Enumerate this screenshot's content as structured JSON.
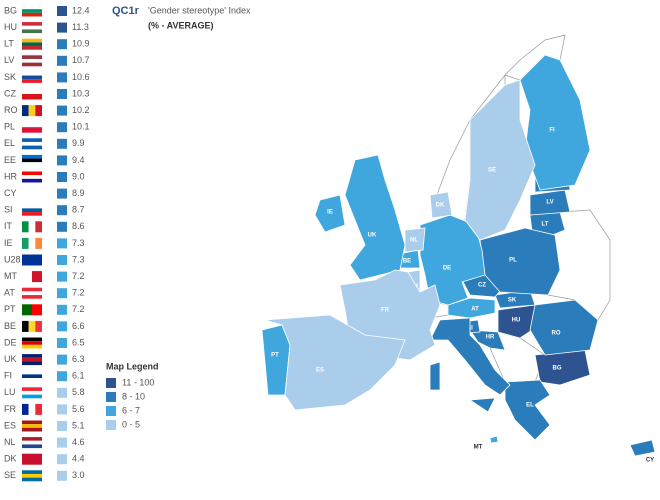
{
  "header": {
    "code": "QC1r",
    "title": "'Gender stereotype' Index",
    "subtitle": "(% - AVERAGE)"
  },
  "rows": [
    {
      "code": "BG",
      "value": 12.4,
      "color": "#2d5391"
    },
    {
      "code": "HU",
      "value": 11.3,
      "color": "#2d5391"
    },
    {
      "code": "LT",
      "value": 10.9,
      "color": "#2b7cba"
    },
    {
      "code": "LV",
      "value": 10.7,
      "color": "#2b7cba"
    },
    {
      "code": "SK",
      "value": 10.6,
      "color": "#2b7cba"
    },
    {
      "code": "CZ",
      "value": 10.3,
      "color": "#2b7cba"
    },
    {
      "code": "RO",
      "value": 10.2,
      "color": "#2b7cba"
    },
    {
      "code": "PL",
      "value": 10.1,
      "color": "#2b7cba"
    },
    {
      "code": "EL",
      "value": 9.9,
      "color": "#2b7cba"
    },
    {
      "code": "EE",
      "value": 9.4,
      "color": "#2b7cba"
    },
    {
      "code": "HR",
      "value": 9.0,
      "value_label": "9.0",
      "color": "#2b7cba"
    },
    {
      "code": "CY",
      "value": 8.9,
      "color": "#2b7cba"
    },
    {
      "code": "SI",
      "value": 8.7,
      "color": "#2b7cba"
    },
    {
      "code": "IT",
      "value": 8.6,
      "color": "#2b7cba"
    },
    {
      "code": "IE",
      "value": 7.3,
      "color": "#3fa6de"
    },
    {
      "code": "U28",
      "value": 7.3,
      "color": "#3fa6de"
    },
    {
      "code": "MT",
      "value": 7.2,
      "color": "#3fa6de"
    },
    {
      "code": "AT",
      "value": 7.2,
      "color": "#3fa6de"
    },
    {
      "code": "PT",
      "value": 7.2,
      "color": "#3fa6de"
    },
    {
      "code": "BE",
      "value": 6.6,
      "color": "#3fa6de"
    },
    {
      "code": "DE",
      "value": 6.5,
      "color": "#3fa6de"
    },
    {
      "code": "UK",
      "value": 6.3,
      "color": "#3fa6de"
    },
    {
      "code": "FI",
      "value": 6.1,
      "color": "#3fa6de"
    },
    {
      "code": "LU",
      "value": 5.8,
      "color": "#a9cdea"
    },
    {
      "code": "FR",
      "value": 5.6,
      "color": "#a9cdea"
    },
    {
      "code": "ES",
      "value": 5.1,
      "color": "#a9cdea"
    },
    {
      "code": "NL",
      "value": 4.6,
      "color": "#a9cdea"
    },
    {
      "code": "DK",
      "value": 4.4,
      "color": "#a9cdea"
    },
    {
      "code": "SE",
      "value": 3.0,
      "value_label": "3.0",
      "color": "#a9cdea"
    }
  ],
  "legend": {
    "title": "Map Legend",
    "items": [
      {
        "label": "11 - 100",
        "color": "#2d5391"
      },
      {
        "label": "8 - 10",
        "color": "#2b7cba"
      },
      {
        "label": "6 - 7",
        "color": "#3fa6de"
      },
      {
        "label": "0 - 5",
        "color": "#a9cdea"
      }
    ]
  }
}
